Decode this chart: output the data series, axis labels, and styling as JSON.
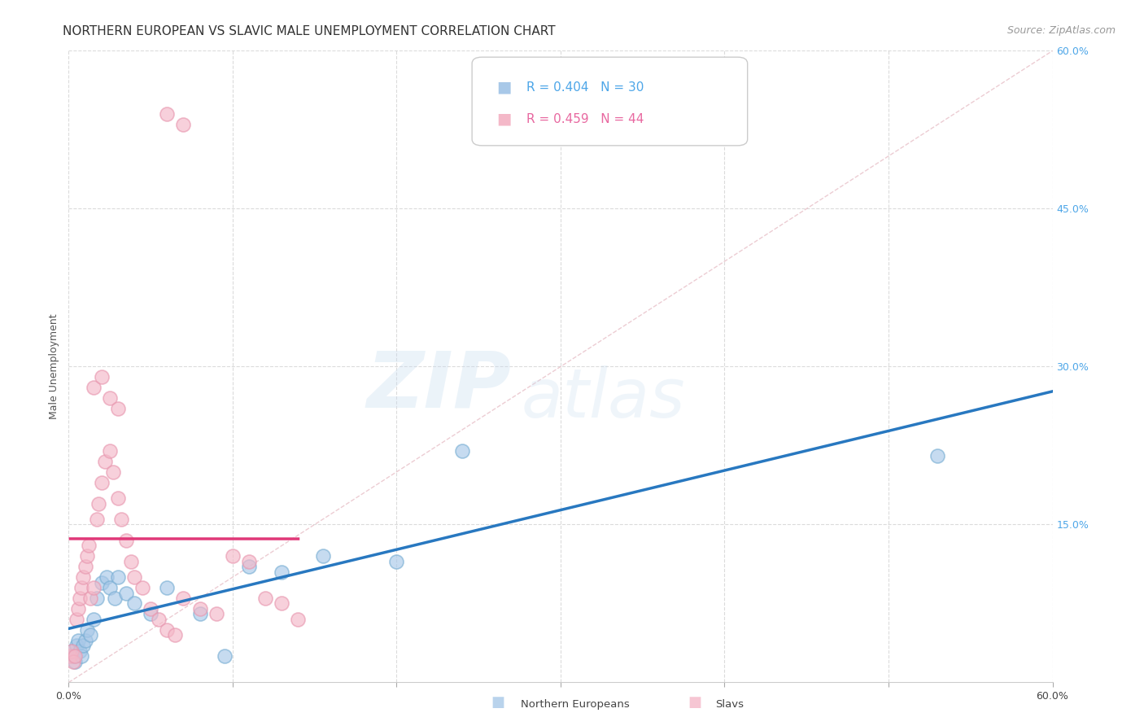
{
  "title": "NORTHERN EUROPEAN VS SLAVIC MALE UNEMPLOYMENT CORRELATION CHART",
  "source": "Source: ZipAtlas.com",
  "ylabel": "Male Unemployment",
  "xlim": [
    0.0,
    0.6
  ],
  "ylim": [
    0.0,
    0.6
  ],
  "ytick_values": [
    0.15,
    0.3,
    0.45,
    0.6
  ],
  "xtick_values": [
    0.0,
    0.1,
    0.2,
    0.3,
    0.4,
    0.5,
    0.6
  ],
  "color_blue": "#a8c8e8",
  "color_pink": "#f4b8c8",
  "color_blue_edge": "#7aafd4",
  "color_pink_edge": "#e898b0",
  "color_blue_text": "#4da6e8",
  "color_pink_text": "#e868a0",
  "color_line_blue": "#2878c0",
  "color_line_pink": "#e03878",
  "color_diagonal": "#d8d8d8",
  "color_grid": "#d8d8d8",
  "background_color": "#ffffff",
  "legend_r_blue": "0.404",
  "legend_n_blue": "30",
  "legend_r_pink": "0.459",
  "legend_n_pink": "44",
  "title_fontsize": 11,
  "source_fontsize": 9,
  "axis_label_fontsize": 9,
  "tick_fontsize": 9,
  "ne_x": [
    0.002,
    0.003,
    0.004,
    0.005,
    0.006,
    0.007,
    0.008,
    0.009,
    0.01,
    0.011,
    0.013,
    0.015,
    0.017,
    0.02,
    0.023,
    0.025,
    0.028,
    0.03,
    0.035,
    0.04,
    0.05,
    0.06,
    0.08,
    0.095,
    0.11,
    0.13,
    0.155,
    0.2,
    0.24,
    0.53
  ],
  "ne_y": [
    0.03,
    0.025,
    0.02,
    0.035,
    0.04,
    0.03,
    0.025,
    0.035,
    0.04,
    0.05,
    0.045,
    0.06,
    0.08,
    0.095,
    0.1,
    0.09,
    0.08,
    0.1,
    0.085,
    0.075,
    0.065,
    0.09,
    0.065,
    0.025,
    0.11,
    0.105,
    0.12,
    0.115,
    0.22,
    0.215
  ],
  "sl_x": [
    0.001,
    0.002,
    0.003,
    0.004,
    0.005,
    0.006,
    0.007,
    0.008,
    0.009,
    0.01,
    0.011,
    0.012,
    0.013,
    0.015,
    0.017,
    0.018,
    0.02,
    0.022,
    0.025,
    0.027,
    0.03,
    0.032,
    0.035,
    0.038,
    0.04,
    0.045,
    0.05,
    0.055,
    0.06,
    0.065,
    0.07,
    0.08,
    0.09,
    0.1,
    0.11,
    0.12,
    0.13,
    0.14,
    0.015,
    0.02,
    0.025,
    0.03,
    0.06,
    0.07
  ],
  "sl_y": [
    0.025,
    0.03,
    0.02,
    0.025,
    0.06,
    0.07,
    0.08,
    0.09,
    0.1,
    0.11,
    0.12,
    0.13,
    0.08,
    0.09,
    0.155,
    0.17,
    0.19,
    0.21,
    0.22,
    0.2,
    0.175,
    0.155,
    0.135,
    0.115,
    0.1,
    0.09,
    0.07,
    0.06,
    0.05,
    0.045,
    0.08,
    0.07,
    0.065,
    0.12,
    0.115,
    0.08,
    0.075,
    0.06,
    0.28,
    0.29,
    0.27,
    0.26,
    0.54,
    0.53
  ]
}
